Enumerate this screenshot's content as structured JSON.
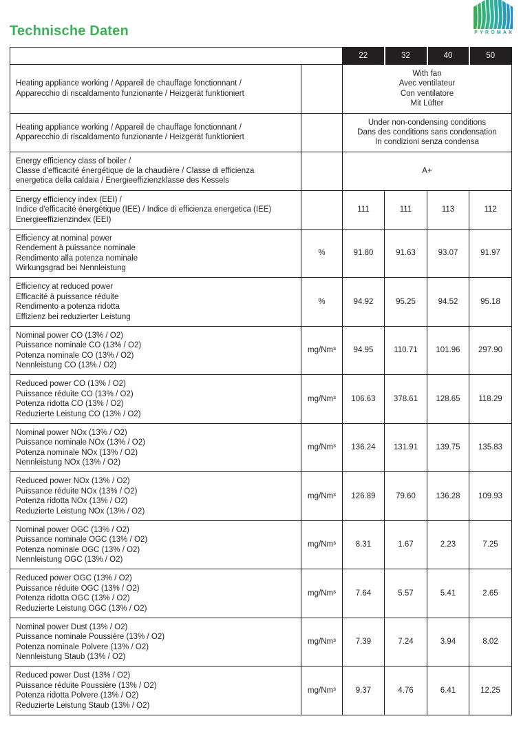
{
  "page": {
    "title": "Technische Daten"
  },
  "logo": {
    "brand": "PYROMAX",
    "letter_colors": [
      "#3aa85a",
      "#34a96e",
      "#2ea982",
      "#28a899",
      "#2197b5",
      "#1d87c4",
      "#1979cd"
    ],
    "house_gradient": [
      "#3bad53",
      "#2fb39b",
      "#1a8fd1"
    ],
    "title_green": "#3db157",
    "header_dark": "#231f20"
  },
  "table": {
    "models": [
      "22",
      "32",
      "40",
      "50"
    ],
    "rows": [
      {
        "label_lines": [
          "Heating appliance working / Appareil de chauffage fonctionnant /",
          "Apparecchio di riscaldamento funzionante / Heizgerät funktioniert"
        ],
        "unit": "",
        "span_value_lines": [
          "With fan",
          "Avec ventilateur",
          "Con ventilatore",
          "Mit Lüfter"
        ]
      },
      {
        "label_lines": [
          "Heating appliance working / Appareil de chauffage fonctionnant /",
          "Apparecchio di riscaldamento funzionante / Heizgerät funktioniert"
        ],
        "unit": "",
        "span_value_lines": [
          "Under non-condensing conditions",
          "Dans des conditions sans condensation",
          "In condizioni senza condensa"
        ]
      },
      {
        "label_lines": [
          "Energy efficiency class of boiler /",
          "Classe d'efficacité énergétique de la chaudière / Classe di efficienza",
          "energetica della caldaia / Energieeffizienzklasse des Kessels"
        ],
        "unit": "",
        "span_value_lines": [
          "A+"
        ]
      },
      {
        "label_lines": [
          "Energy efficiency index (EEI) /",
          "Indice d'efficacité énergétique (IEE) / Indice di efficienza energetica (IEE)",
          "Energieeffizienzindex (EEI)"
        ],
        "unit": "",
        "values": [
          "111",
          "111",
          "113",
          "112"
        ]
      },
      {
        "label_lines": [
          "Efficiency at nominal power",
          "Rendement à puissance nominale",
          "Rendimento alla potenza nominale",
          "Wirkungsgrad bei Nennleistung"
        ],
        "unit": "%",
        "values": [
          "91.80",
          "91.63",
          "93.07",
          "91.97"
        ]
      },
      {
        "label_lines": [
          "Efficiency at reduced power",
          "Efficacité à puissance réduite",
          "Rendimento a potenza ridotta",
          "Effizienz bei reduzierter Leistung"
        ],
        "unit": "%",
        "values": [
          "94.92",
          "95.25",
          "94.52",
          "95.18"
        ]
      },
      {
        "label_lines": [
          "Nominal power CO (13% / O2)",
          "Puissance nominale CO (13% / O2)",
          "Potenza nominale CO (13% / O2)",
          "Nennleistung CO (13% / O2)"
        ],
        "unit": "mg/Nm³",
        "values": [
          "94.95",
          "110.71",
          "101.96",
          "297.90"
        ]
      },
      {
        "label_lines": [
          "Reduced power CO (13% / O2)",
          "Puissance réduite CO (13% / O2)",
          "Potenza ridotta CO (13% / O2)",
          "Reduzierte Leistung CO (13% / O2)"
        ],
        "unit": "mg/Nm³",
        "values": [
          "106.63",
          "378.61",
          "128.65",
          "118.29"
        ]
      },
      {
        "label_lines": [
          "Nominal power NOx (13% / O2)",
          "Puissance nominale NOx (13% / O2)",
          "Potenza nominale NOx (13% / O2)",
          "Nennleistung NOx (13% / O2)"
        ],
        "unit": "mg/Nm³",
        "values": [
          "136.24",
          "131.91",
          "139.75",
          "135.83"
        ]
      },
      {
        "label_lines": [
          "Reduced power NOx (13% / O2)",
          "Puissance réduite NOx (13% / O2)",
          "Potenza ridotta NOx (13% / O2)",
          "Reduzierte Leistung NOx (13% / O2)"
        ],
        "unit": "mg/Nm³",
        "values": [
          "126.89",
          "79.60",
          "136.28",
          "109.93"
        ]
      },
      {
        "label_lines": [
          "Nominal power OGC (13% / O2)",
          "Puissance nominale OGC (13% / O2)",
          "Potenza nominale OGC (13% / O2)",
          "Nennleistung OGC (13% / O2)"
        ],
        "unit": "mg/Nm³",
        "values": [
          "8.31",
          "1.67",
          "2.23",
          "7.25"
        ]
      },
      {
        "label_lines": [
          "Reduced power OGC (13% / O2)",
          "Puissance réduite OGC (13% / O2)",
          "Potenza ridotta OGC (13% / O2)",
          "Reduzierte Leistung OGC (13% / O2)"
        ],
        "unit": "mg/Nm³",
        "values": [
          "7.64",
          "5.57",
          "5.41",
          "2.65"
        ]
      },
      {
        "label_lines": [
          "Nominal power Dust (13% / O2)",
          "Puissance nominale Poussière (13% / O2)",
          "Potenza nominale Polvere (13% / O2)",
          "Nennleistung Staub (13% / O2)"
        ],
        "unit": "mg/Nm³",
        "values": [
          "7.39",
          "7.24",
          "3.94",
          "8.02"
        ]
      },
      {
        "label_lines": [
          "Reduced power Dust (13% / O2)",
          "Puissance réduite Poussière (13% / O2)",
          "Potenza ridotta Polvere (13% / O2)",
          "Reduzierte Leistung Staub (13% / O2)"
        ],
        "unit": "mg/Nm³",
        "values": [
          "9.37",
          "4.76",
          "6.41",
          "12.25"
        ]
      }
    ]
  }
}
